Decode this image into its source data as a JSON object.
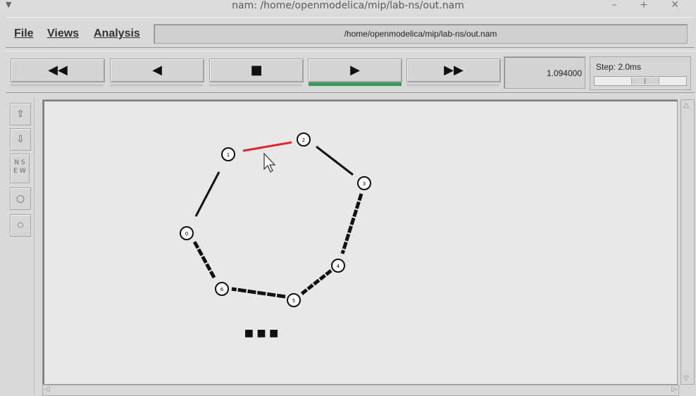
{
  "window": {
    "title": "nam: /home/openmodelica/mip/lab-ns/out.nam",
    "menu_glyph": "▼",
    "controls": "– + ✕"
  },
  "menu": {
    "file": "File",
    "views": "Views",
    "analysis": "Analysis",
    "path": "/home/openmodelica/mip/lab-ns/out.nam"
  },
  "controls": {
    "rewind": "◀◀",
    "back": "◀",
    "stop": "■",
    "play": "▶",
    "forward": "▶▶",
    "time": "1.094000",
    "step_label": "Step: 2.0ms"
  },
  "sidebar": {
    "zoom_in": "⇪",
    "zoom_out": "⇩",
    "view_top": "N S",
    "view_bottom": "E W",
    "circle_large": "○",
    "circle_small": "○"
  },
  "colors": {
    "active_link": "#e0262b",
    "link": "#111111",
    "play_indicator": "#3a9a5c"
  },
  "network": {
    "nodes": [
      {
        "id": "n1",
        "label": "1"
      },
      {
        "id": "n2",
        "label": "2"
      },
      {
        "id": "n3",
        "label": "3"
      },
      {
        "id": "n4",
        "label": "4"
      },
      {
        "id": "n5",
        "label": "5"
      },
      {
        "id": "n6",
        "label": "6"
      },
      {
        "id": "n0",
        "label": "0"
      }
    ],
    "ellipsis": "■ ■ ■"
  }
}
